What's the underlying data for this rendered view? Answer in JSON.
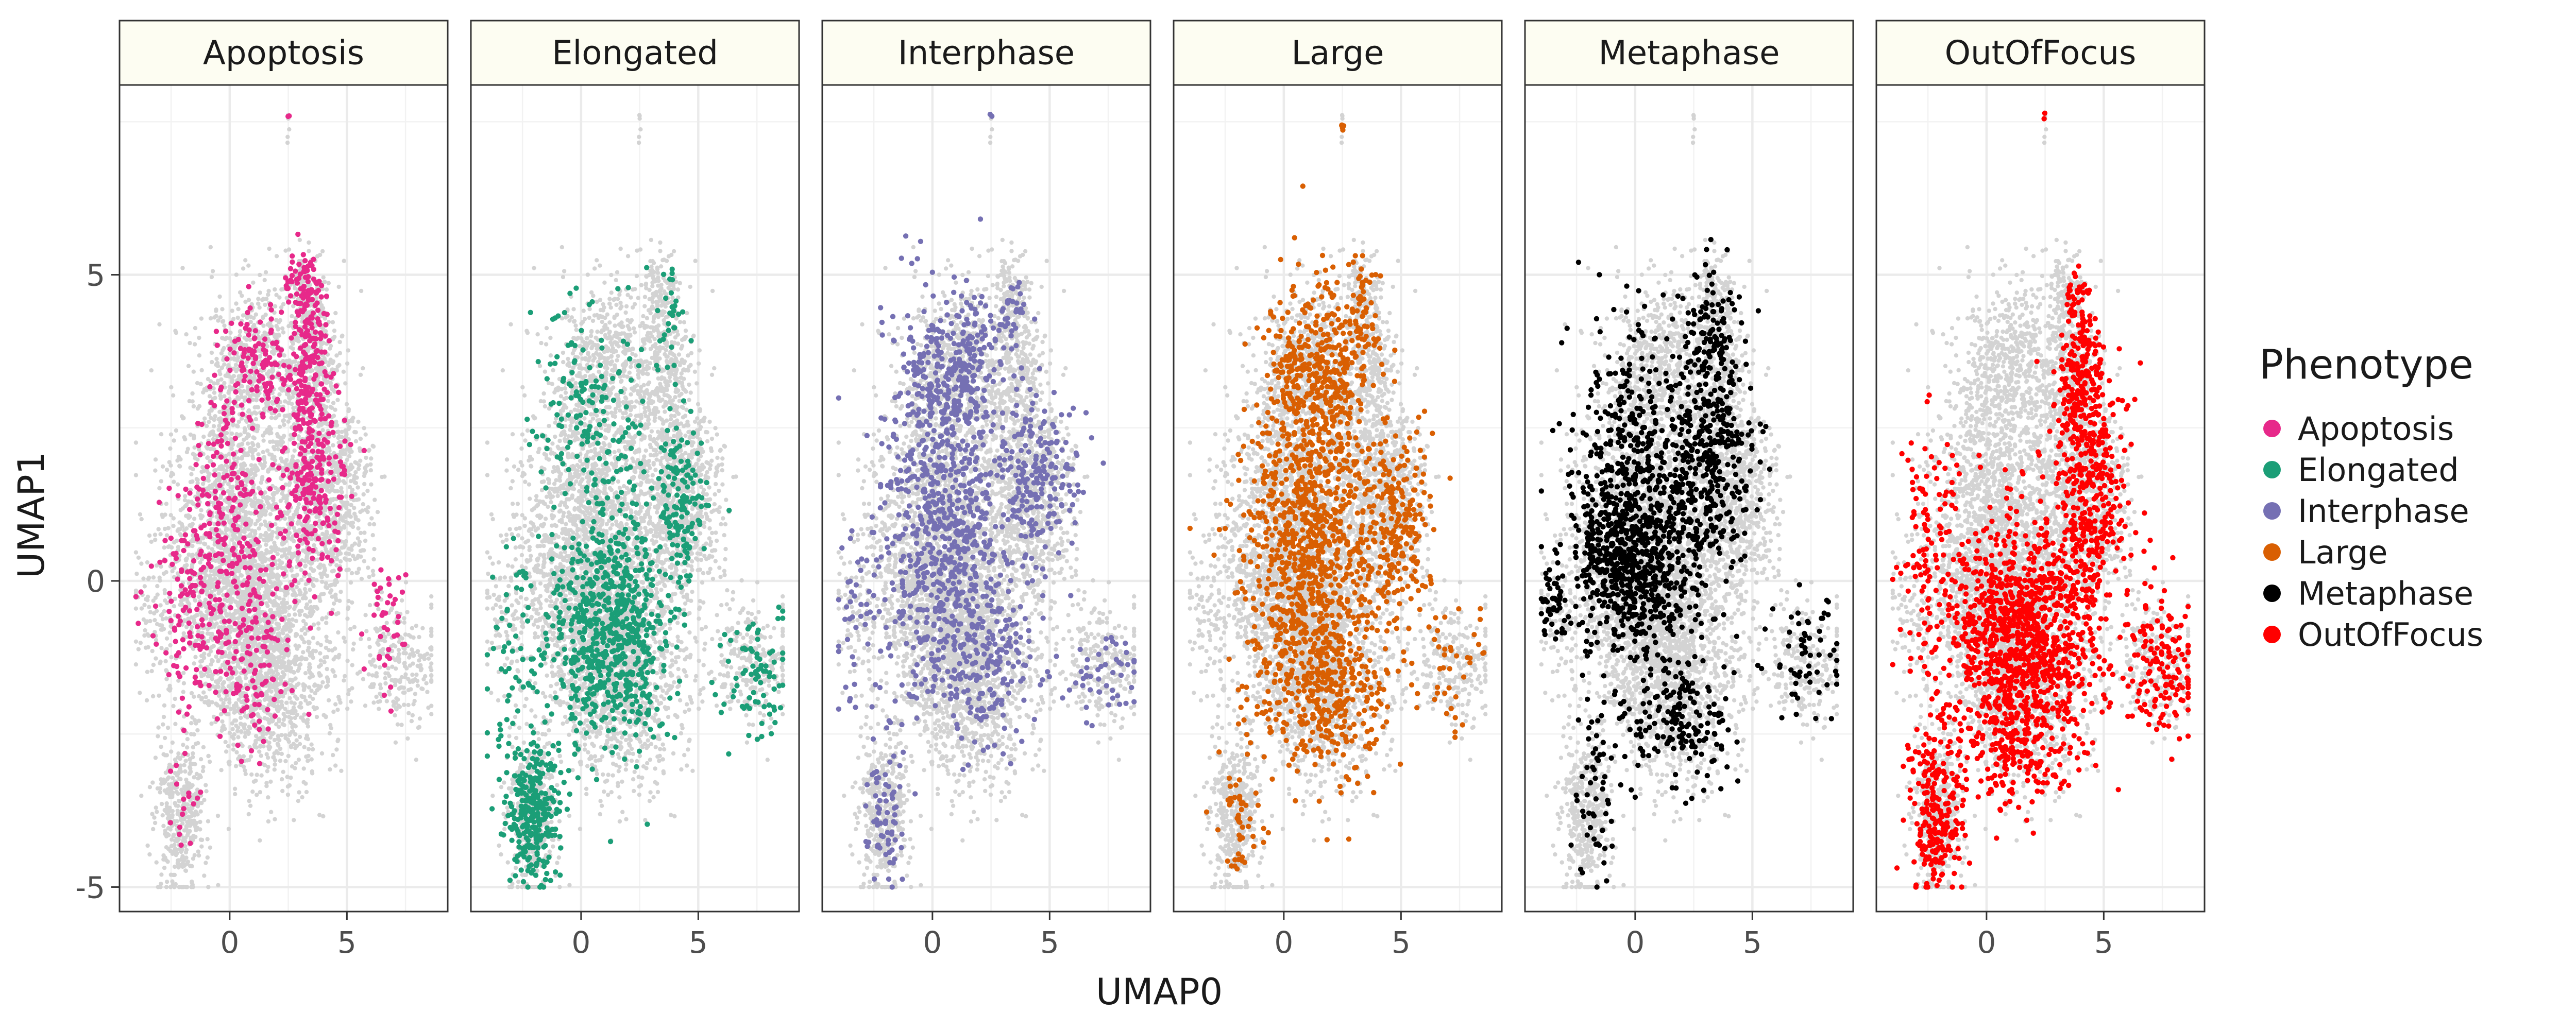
{
  "chart_data": {
    "type": "scatter",
    "facet_by": "Phenotype",
    "xlabel": "UMAP0",
    "ylabel": "UMAP1",
    "xlim": [
      -4.7,
      9.3
    ],
    "ylim": [
      -5.4,
      8.1
    ],
    "x_ticks": [
      0,
      5
    ],
    "y_ticks": [
      -5,
      0,
      5
    ],
    "x_tick_labels": [
      "0",
      "5"
    ],
    "y_tick_labels": [
      "-5",
      "0",
      "5"
    ],
    "grid": true,
    "background_points_color": "#d3d3d3",
    "strip_fill": "#fdfdf2",
    "legend": {
      "title": "Phenotype",
      "position": "right"
    },
    "panels": [
      {
        "name": "Apoptosis",
        "color": "#e7298a",
        "clusters": [
          [
            1.2,
            3.6,
            0.7,
            0.4,
            110
          ],
          [
            3.4,
            3.6,
            0.5,
            0.8,
            170
          ],
          [
            3.5,
            1.6,
            0.7,
            0.8,
            220
          ],
          [
            -0.2,
            1.0,
            0.9,
            1.1,
            200
          ],
          [
            -1.8,
            -0.3,
            0.8,
            0.8,
            110
          ],
          [
            0.8,
            -1.2,
            0.9,
            0.8,
            130
          ],
          [
            3.2,
            4.8,
            0.3,
            0.3,
            60
          ],
          [
            6.8,
            -0.8,
            0.5,
            0.5,
            40
          ],
          [
            -2.0,
            -3.6,
            0.3,
            0.5,
            18
          ],
          [
            2.5,
            7.6,
            0.03,
            0.03,
            2
          ]
        ]
      },
      {
        "name": "Elongated",
        "color": "#1b9e77",
        "clusters": [
          [
            1.2,
            -0.8,
            1.3,
            1.0,
            700
          ],
          [
            4.2,
            1.3,
            0.6,
            0.7,
            140
          ],
          [
            0.5,
            2.8,
            1.2,
            1.0,
            170
          ],
          [
            -2.0,
            -3.8,
            0.6,
            0.6,
            280
          ],
          [
            7.5,
            -1.5,
            0.8,
            0.5,
            80
          ],
          [
            -3.0,
            -1.6,
            0.6,
            1.1,
            60
          ],
          [
            3.8,
            4.3,
            0.3,
            0.5,
            30
          ]
        ]
      },
      {
        "name": "Interphase",
        "color": "#7570b3",
        "clusters": [
          [
            0.5,
            1.0,
            1.4,
            1.5,
            750
          ],
          [
            0.8,
            3.5,
            1.0,
            0.6,
            230
          ],
          [
            4.5,
            1.7,
            0.8,
            0.7,
            200
          ],
          [
            2.3,
            -1.4,
            1.2,
            0.7,
            170
          ],
          [
            -2.0,
            -3.8,
            0.4,
            0.7,
            70
          ],
          [
            7.2,
            -1.5,
            0.9,
            0.4,
            50
          ],
          [
            -3.2,
            -0.6,
            0.4,
            0.8,
            40
          ],
          [
            3.4,
            4.5,
            0.3,
            0.3,
            30
          ],
          [
            2.5,
            7.6,
            0.03,
            0.03,
            2
          ]
        ]
      },
      {
        "name": "Large",
        "color": "#d95f02",
        "clusters": [
          [
            1.0,
            0.5,
            1.4,
            1.6,
            1000
          ],
          [
            1.5,
            3.5,
            1.1,
            0.7,
            330
          ],
          [
            4.8,
            0.9,
            0.8,
            0.8,
            230
          ],
          [
            2.0,
            -1.8,
            1.3,
            0.6,
            230
          ],
          [
            -2.0,
            -3.9,
            0.4,
            0.5,
            45
          ],
          [
            7.2,
            -1.4,
            0.8,
            0.5,
            40
          ],
          [
            3.4,
            4.6,
            0.3,
            0.4,
            40
          ],
          [
            2.5,
            7.4,
            0.03,
            0.2,
            5
          ]
        ]
      },
      {
        "name": "Metaphase",
        "color": "#000000",
        "clusters": [
          [
            -0.2,
            0.4,
            1.3,
            0.8,
            750
          ],
          [
            3.0,
            1.8,
            1.0,
            1.0,
            420
          ],
          [
            -0.5,
            2.5,
            1.0,
            1.0,
            200
          ],
          [
            3.2,
            4.0,
            0.5,
            0.6,
            110
          ],
          [
            1.8,
            -2.3,
            1.2,
            0.5,
            170
          ],
          [
            -1.6,
            -3.4,
            0.5,
            0.9,
            60
          ],
          [
            7.5,
            -1.2,
            0.8,
            0.5,
            60
          ],
          [
            -3.5,
            -0.5,
            0.4,
            0.4,
            40
          ]
        ]
      },
      {
        "name": "OutOfFocus",
        "color": "#ff0000",
        "clusters": [
          [
            1.5,
            -1.0,
            1.6,
            1.0,
            1100
          ],
          [
            4.5,
            1.3,
            0.8,
            1.0,
            320
          ],
          [
            4.0,
            3.2,
            0.5,
            0.6,
            210
          ],
          [
            -2.2,
            -3.8,
            0.6,
            0.7,
            230
          ],
          [
            7.4,
            -1.4,
            0.8,
            0.6,
            140
          ],
          [
            -2.5,
            0.5,
            0.8,
            1.1,
            120
          ],
          [
            1.5,
            -3.0,
            1.0,
            0.4,
            100
          ],
          [
            3.9,
            4.6,
            0.2,
            0.3,
            30
          ],
          [
            2.5,
            7.6,
            0.03,
            0.03,
            2
          ]
        ]
      }
    ]
  }
}
